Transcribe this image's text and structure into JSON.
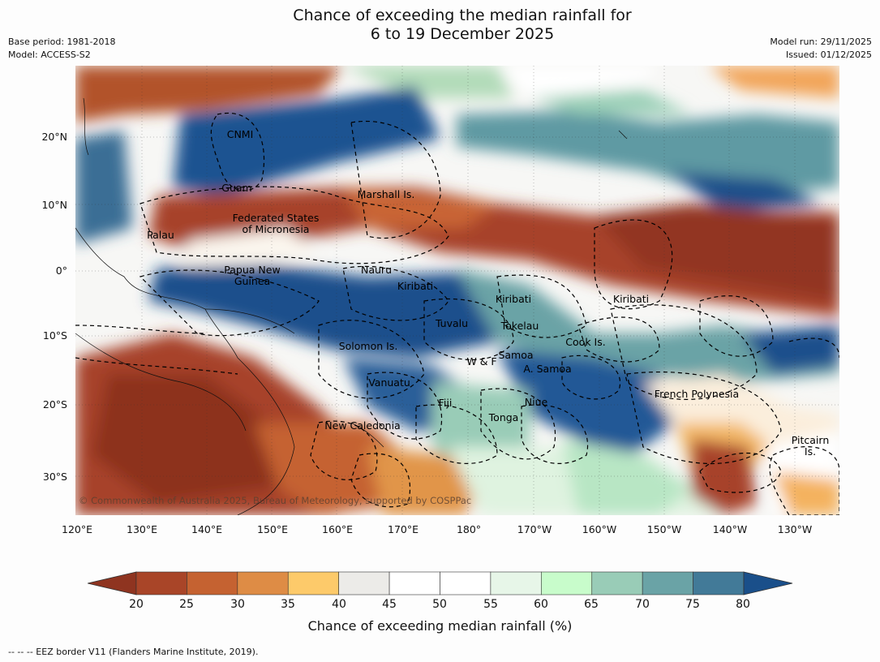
{
  "title": {
    "line1": "Chance of exceeding the median rainfall for",
    "line2": "6 to 19 December 2025"
  },
  "meta_left": {
    "base_period": "Base period: 1981-2018",
    "model": "Model: ACCESS-S2"
  },
  "meta_right": {
    "model_run": "Model run: 29/11/2025",
    "issued": "Issued: 01/12/2025"
  },
  "lat_labels": [
    "20°N",
    "10°N",
    "0°",
    "10°S",
    "20°S",
    "30°S"
  ],
  "lon_labels": [
    "120°E",
    "130°E",
    "140°E",
    "150°E",
    "160°E",
    "170°E",
    "180°",
    "170°W",
    "160°W",
    "150°W",
    "140°W",
    "130°W"
  ],
  "places": {
    "cnmi": "CNMI",
    "guam": "Guam",
    "marshall": "Marshall Is.",
    "fsm": "Federated States\nof Micronesia",
    "palau": "Palau",
    "png": "Papua New\nGuinea",
    "nauru": "Nauru",
    "kiribati_west": "Kiribati",
    "kiribati_central": "Kiribati",
    "kiribati_east": "Kiribati",
    "tuvalu": "Tuvalu",
    "tokelau": "Tokelau",
    "cook": "Cook Is.",
    "solomon": "Solomon Is.",
    "wf": "W & F",
    "samoa": "Samoa",
    "asamoa": "A. Samoa",
    "vanuatu": "Vanuatu",
    "fiji": "Fiji",
    "niue": "Niue",
    "tonga": "Tonga",
    "french_polynesia": "French Polynesia",
    "new_caledonia": "New Caledonia",
    "pitcairn": "Pitcairn\nIs."
  },
  "copyright": "© Commonwealth of Australia 2025, Bureau of Meteorology, supported by COSPPac",
  "colorbar": {
    "ticks": [
      "20",
      "25",
      "30",
      "35",
      "40",
      "45",
      "50",
      "55",
      "60",
      "65",
      "70",
      "75",
      "80"
    ],
    "colors": [
      "#8f3420",
      "#a94528",
      "#c56231",
      "#de8c45",
      "#fdca6a",
      "#ecebe8",
      "#ffffff",
      "#ffffff",
      "#e7f6e8",
      "#c8fccb",
      "#99ccb7",
      "#6aa3a6",
      "#427a98",
      "#1a4f8a"
    ],
    "title": "Chance of exceeding median rainfall (%)"
  },
  "footer": "--  --  -- EEZ border V11 (Flanders Marine Institute, 2019)."
}
